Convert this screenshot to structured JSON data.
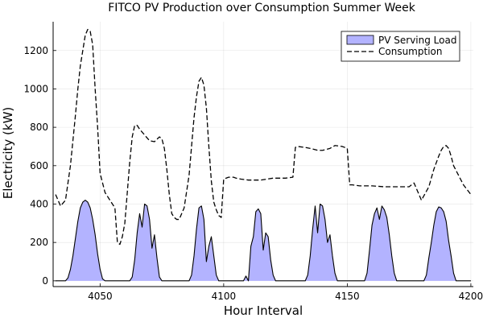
{
  "chart_data": {
    "type": "area",
    "title": "FITCO PV Production over Consumption Summer Week",
    "xlabel": "Hour Interval",
    "ylabel": "Electricity (kW)",
    "xlim": [
      4031,
      4201
    ],
    "ylim": [
      -30,
      1350
    ],
    "xticks": [
      4050,
      4100,
      4150,
      4200
    ],
    "yticks": [
      0,
      200,
      400,
      600,
      800,
      1000,
      1200
    ],
    "grid": true,
    "legend_position": "top-right",
    "series": [
      {
        "name": "PV Serving Load",
        "kind": "area",
        "color": "#b3b3ff",
        "x": [
          4032,
          4036,
          4037,
          4038,
          4039,
          4040,
          4041,
          4042,
          4043,
          4044,
          4045,
          4046,
          4047,
          4048,
          4049,
          4050,
          4051,
          4052,
          4062,
          4063,
          4064,
          4065,
          4066,
          4067,
          4068,
          4069,
          4070,
          4071,
          4072,
          4073,
          4074,
          4075,
          4076,
          4086,
          4087,
          4088,
          4089,
          4090,
          4091,
          4092,
          4093,
          4094,
          4095,
          4096,
          4097,
          4098,
          4099,
          4100,
          4108,
          4109,
          4110,
          4111,
          4112,
          4113,
          4114,
          4115,
          4116,
          4117,
          4118,
          4119,
          4120,
          4121,
          4122,
          4123,
          4133,
          4134,
          4135,
          4136,
          4137,
          4138,
          4139,
          4140,
          4141,
          4142,
          4143,
          4144,
          4145,
          4146,
          4147,
          4157,
          4158,
          4159,
          4160,
          4161,
          4162,
          4163,
          4164,
          4165,
          4166,
          4167,
          4168,
          4169,
          4170,
          4171,
          4181,
          4182,
          4183,
          4184,
          4185,
          4186,
          4187,
          4188,
          4189,
          4190,
          4191,
          4192,
          4193,
          4194,
          4195,
          4200
        ],
        "y": [
          0,
          0,
          15,
          60,
          130,
          220,
          310,
          380,
          410,
          420,
          410,
          380,
          320,
          240,
          140,
          60,
          10,
          0,
          0,
          20,
          110,
          250,
          350,
          280,
          400,
          390,
          320,
          170,
          240,
          120,
          20,
          0,
          0,
          0,
          30,
          130,
          270,
          380,
          390,
          320,
          100,
          180,
          230,
          130,
          30,
          0,
          0,
          0,
          0,
          25,
          0,
          180,
          230,
          360,
          375,
          350,
          160,
          250,
          230,
          110,
          30,
          0,
          0,
          0,
          0,
          30,
          130,
          270,
          390,
          250,
          400,
          390,
          320,
          200,
          240,
          130,
          40,
          0,
          0,
          0,
          40,
          160,
          290,
          350,
          380,
          320,
          390,
          370,
          330,
          240,
          130,
          40,
          0,
          0,
          0,
          30,
          120,
          200,
          290,
          360,
          385,
          380,
          360,
          310,
          210,
          130,
          40,
          0,
          0,
          0
        ]
      },
      {
        "name": "Consumption",
        "kind": "line",
        "dash": "dashed",
        "color": "#000000",
        "x": [
          4032,
          4034,
          4036,
          4038,
          4040,
          4041,
          4042,
          4043,
          4044,
          4045,
          4046,
          4047,
          4048,
          4049,
          4050,
          4052,
          4054,
          4056,
          4057,
          4058,
          4059,
          4060,
          4062,
          4063,
          4064,
          4065,
          4066,
          4068,
          4070,
          4072,
          4074,
          4075,
          4076,
          4077,
          4078,
          4079,
          4080,
          4081,
          4082,
          4084,
          4086,
          4088,
          4089,
          4090,
          4091,
          4092,
          4093,
          4094,
          4095,
          4096,
          4097,
          4098,
          4099,
          4100,
          4102,
          4103,
          4104,
          4105,
          4107,
          4110,
          4115,
          4120,
          4125,
          4128,
          4129,
          4130,
          4133,
          4135,
          4138,
          4140,
          4143,
          4145,
          4148,
          4150,
          4151,
          4152,
          4155,
          4160,
          4165,
          4170,
          4175,
          4177,
          4178,
          4180,
          4183,
          4185,
          4187,
          4188,
          4189,
          4190,
          4191,
          4192,
          4193,
          4195,
          4197,
          4200
        ],
        "y": [
          450,
          390,
          420,
          600,
          860,
          1000,
          1120,
          1200,
          1280,
          1310,
          1300,
          1230,
          1000,
          800,
          560,
          460,
          420,
          380,
          200,
          190,
          230,
          300,
          620,
          750,
          810,
          810,
          790,
          760,
          730,
          725,
          750,
          740,
          690,
          580,
          450,
          350,
          330,
          320,
          320,
          380,
          550,
          850,
          960,
          1040,
          1060,
          1020,
          900,
          700,
          520,
          410,
          370,
          340,
          330,
          530,
          540,
          540,
          540,
          535,
          530,
          525,
          525,
          535,
          535,
          540,
          695,
          700,
          695,
          690,
          680,
          680,
          690,
          705,
          700,
          690,
          500,
          500,
          495,
          495,
          490,
          490,
          490,
          510,
          480,
          420,
          490,
          580,
          650,
          680,
          700,
          705,
          690,
          650,
          600,
          550,
          500,
          450
        ]
      }
    ]
  }
}
